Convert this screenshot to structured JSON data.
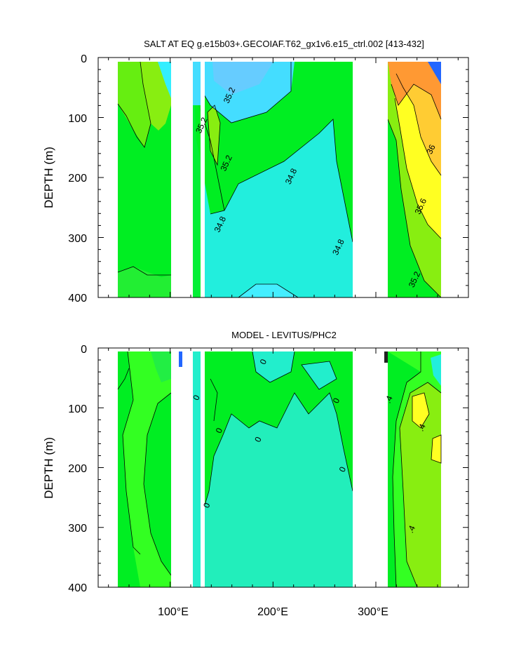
{
  "chart_data": [
    {
      "type": "contour",
      "title": "SALT AT EQ g.e15b03+.GECOIAF.T62_gx1v6.e15_ctrl.002 [413-432]",
      "ylabel": "DEPTH (m)",
      "xlabel": "",
      "xlim": [
        30,
        390
      ],
      "ylim": [
        400,
        0
      ],
      "y_ticks": [
        "0",
        "100",
        "200",
        "300",
        "400"
      ],
      "x_ticks": [
        "100°E",
        "200°E",
        "300°E"
      ],
      "contour_labels": [
        {
          "text": "35.2",
          "lon": 160,
          "depth": 65
        },
        {
          "text": "35.2",
          "lon": 133,
          "depth": 115
        },
        {
          "text": "35.2",
          "lon": 157,
          "depth": 178
        },
        {
          "text": "34.8",
          "lon": 220,
          "depth": 200
        },
        {
          "text": "34.8",
          "lon": 151,
          "depth": 280
        },
        {
          "text": "34.8",
          "lon": 266,
          "depth": 318
        },
        {
          "text": "36",
          "lon": 356,
          "depth": 155
        },
        {
          "text": "35.6",
          "lon": 346,
          "depth": 250
        },
        {
          "text": "35.2",
          "lon": 340,
          "depth": 372
        }
      ]
    },
    {
      "type": "contour",
      "title": "MODEL - LEVITUS/PHC2",
      "ylabel": "DEPTH (m)",
      "xlabel": "",
      "xlim": [
        30,
        390
      ],
      "ylim": [
        400,
        0
      ],
      "y_ticks": [
        "0",
        "100",
        "200",
        "300",
        "400"
      ],
      "x_ticks": [
        "100°E",
        "200°E",
        "300°E"
      ],
      "contour_labels": [
        {
          "text": "0",
          "lon": 193,
          "depth": 25
        },
        {
          "text": "0",
          "lon": 128,
          "depth": 85
        },
        {
          "text": "0",
          "lon": 264,
          "depth": 90
        },
        {
          "text": "0",
          "lon": 150,
          "depth": 140
        },
        {
          "text": "0",
          "lon": 188,
          "depth": 155
        },
        {
          "text": "0",
          "lon": 270,
          "depth": 205
        },
        {
          "text": "0",
          "lon": 138,
          "depth": 265
        },
        {
          "text": ".4",
          "lon": 315,
          "depth": 88
        },
        {
          "text": ".4",
          "lon": 347,
          "depth": 135
        },
        {
          "text": ".4",
          "lon": 337,
          "depth": 305
        }
      ]
    }
  ],
  "colors": {
    "cyan": "#22eedd",
    "aqua": "#44ddff",
    "green": "#00ee22",
    "bright_green": "#33ff22",
    "lime": "#88ee11",
    "yellow": "#ffff22",
    "gold": "#ffcc33",
    "orange": "#ff9933",
    "blue": "#2266ff"
  }
}
